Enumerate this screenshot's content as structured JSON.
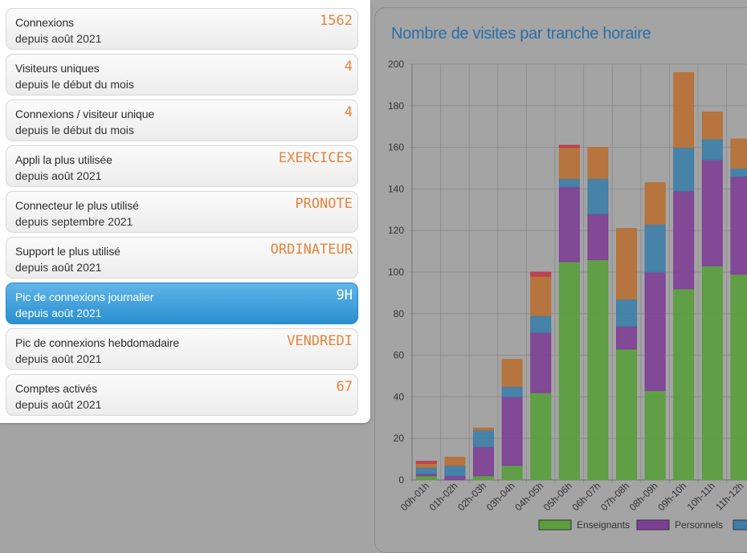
{
  "stats": [
    {
      "title": "Connexions",
      "subtitle": "depuis août 2021",
      "value": "1562",
      "active": false
    },
    {
      "title": "Visiteurs uniques",
      "subtitle": "depuis le début du mois",
      "value": "4",
      "active": false
    },
    {
      "title": "Connexions / visiteur unique",
      "subtitle": "depuis le début du mois",
      "value": "4",
      "active": false
    },
    {
      "title": "Appli la plus utilisée",
      "subtitle": "depuis août 2021",
      "value": "EXERCICES",
      "active": false
    },
    {
      "title": "Connecteur le plus utilisé",
      "subtitle": "depuis septembre 2021",
      "value": "PRONOTE",
      "active": false
    },
    {
      "title": "Support le plus utilisé",
      "subtitle": "depuis août 2021",
      "value": "ORDINATEUR",
      "active": false
    },
    {
      "title": "Pic de connexions journalier",
      "subtitle": "depuis août 2021",
      "value": "9H",
      "active": true
    },
    {
      "title": "Pic de connexions hebdomadaire",
      "subtitle": "depuis août 2021",
      "value": "VENDREDI",
      "active": false
    },
    {
      "title": "Comptes activés",
      "subtitle": "depuis août 2021",
      "value": "67",
      "active": false
    }
  ],
  "chart_data": {
    "type": "bar",
    "stacked": true,
    "title": "Nombre de visites par tranche horaire",
    "categories": [
      "00h-01h",
      "01h-02h",
      "02h-03h",
      "03h-04h",
      "04h-05h",
      "05h-06h",
      "06h-07h",
      "07h-08h",
      "08h-09h",
      "09h-10h",
      "10h-11h",
      "11h-12h"
    ],
    "series": [
      {
        "name": "Enseignants",
        "color": "#5a9e3c",
        "values": [
          2,
          0,
          2,
          7,
          42,
          105,
          106,
          63,
          43,
          92,
          103,
          99
        ]
      },
      {
        "name": "Personnels",
        "color": "#7d3f95",
        "values": [
          1,
          2,
          14,
          33,
          29,
          36,
          22,
          11,
          57,
          47,
          51,
          47
        ]
      },
      {
        "name": "",
        "color": "#3d7ea8",
        "values": [
          3,
          5,
          8,
          5,
          8,
          4,
          17,
          13,
          23,
          21,
          10,
          4
        ]
      },
      {
        "name": "",
        "color": "#b87033",
        "values": [
          2,
          4,
          1,
          13,
          19,
          15,
          15,
          34,
          20,
          36,
          13,
          14
        ]
      },
      {
        "name": "",
        "color": "#c0394a",
        "values": [
          1,
          0,
          0,
          0,
          2,
          1,
          0,
          0,
          0,
          0,
          0,
          0
        ]
      }
    ],
    "ylim": [
      0,
      200
    ],
    "yticks": [
      0,
      20,
      40,
      60,
      80,
      100,
      120,
      140,
      160,
      180,
      200
    ],
    "grid": true,
    "legend": "bottom"
  }
}
